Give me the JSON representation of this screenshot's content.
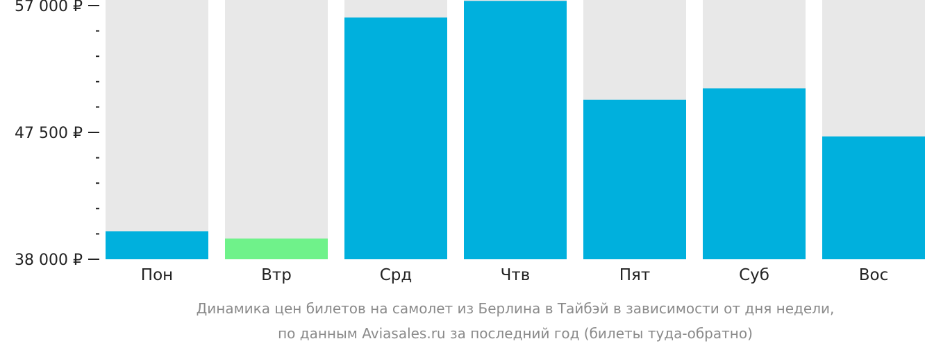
{
  "chart_data": {
    "type": "bar",
    "categories": [
      "Пон",
      "Втр",
      "Срд",
      "Чтв",
      "Пят",
      "Суб",
      "Вос"
    ],
    "values": [
      40100,
      39550,
      56100,
      57350,
      49950,
      50800,
      47200
    ],
    "ylim": [
      38000,
      57000
    ],
    "y_ticks": [
      {
        "value": 57000,
        "label": "57 000 ₽"
      },
      {
        "value": 47500,
        "label": "47 500 ₽"
      },
      {
        "value": 38000,
        "label": "38 000 ₽"
      }
    ],
    "y_minor_step": 1900,
    "highlight_index": 1,
    "caption_lines": [
      "Динамика цен билетов на самолет из Берлина в Тайбэй в зависимости от дня недели,",
      "по данным Aviasales.ru за последний год (билеты туда-обратно)"
    ],
    "grid": false,
    "colors": {
      "bar": "#00b0dd",
      "highlight": "#6ff28a",
      "track": "#e8e8e8",
      "axis": "#222222",
      "caption": "#8a8a8a"
    }
  }
}
